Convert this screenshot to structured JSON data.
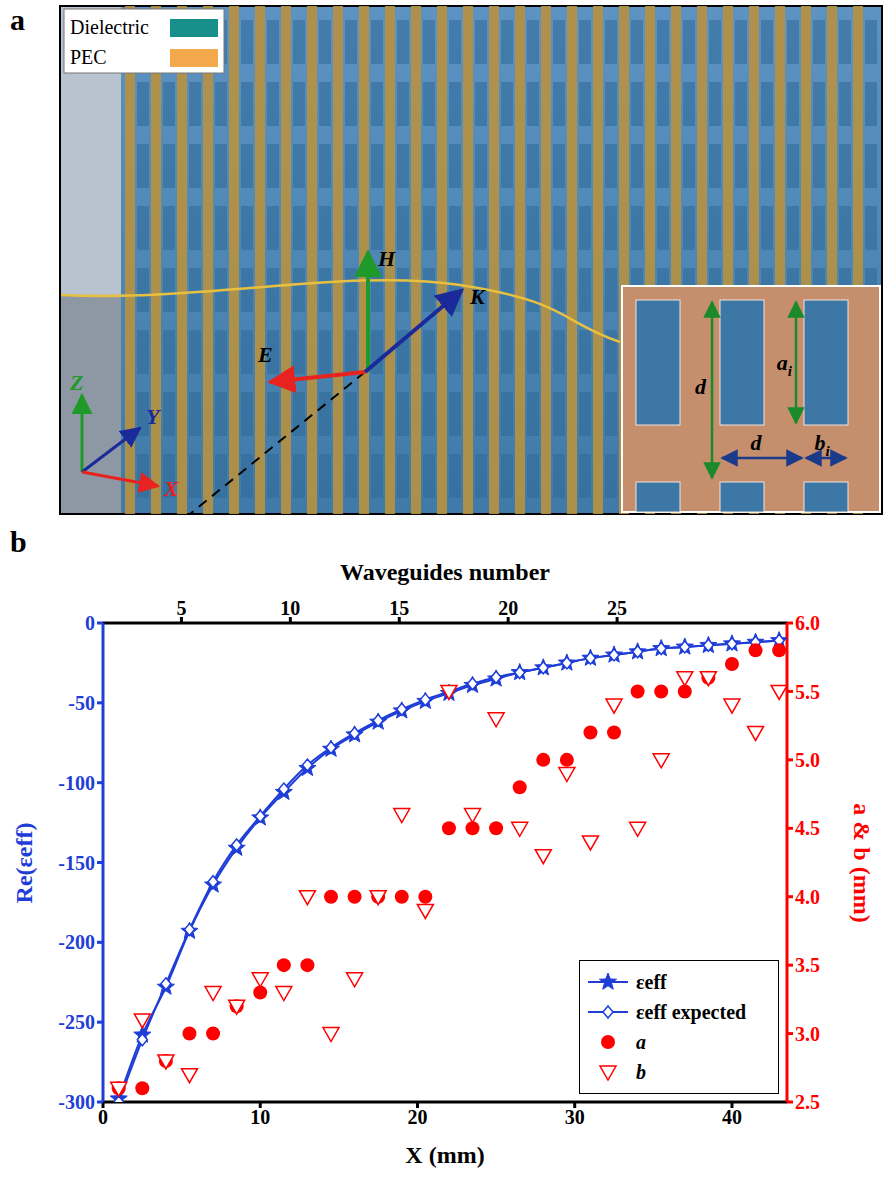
{
  "diagram": {
    "panel_label": "a",
    "legend": [
      {
        "label": "Dielectric",
        "color": "#17908c"
      },
      {
        "label": "PEC",
        "color": "#f3a84c"
      }
    ],
    "vectors": {
      "E": "E",
      "H": "H",
      "K": "K"
    },
    "axes": {
      "x": "X",
      "y": "Y",
      "z": "Z"
    },
    "inset": {
      "period": "d",
      "slot_height": "a",
      "slot_width": "b",
      "index": "i"
    }
  },
  "chart_data": {
    "type": "line",
    "panel_label": "b",
    "x_label": "X (mm)",
    "x2_label": "Waveguides number",
    "y_label": "Re(εeff)",
    "y2_label": "a & b (mm)",
    "x": [
      1,
      2.5,
      4,
      5.5,
      7,
      8.5,
      10,
      11.5,
      13,
      14.5,
      16,
      17.5,
      19,
      20.5,
      22,
      23.5,
      25,
      26.5,
      28,
      29.5,
      31,
      32.5,
      34,
      35.5,
      37,
      38.5,
      40,
      41.5,
      43
    ],
    "xlim": [
      0,
      43.5
    ],
    "xticks": [
      0,
      10,
      20,
      30,
      40
    ],
    "x2lim": [
      1.4,
      32.8
    ],
    "x2ticks": [
      5,
      10,
      15,
      20,
      25
    ],
    "ylim": [
      -300,
      0
    ],
    "yticks": [
      -300,
      -250,
      -200,
      -150,
      -100,
      -50,
      0
    ],
    "y2lim": [
      2.5,
      6
    ],
    "y2ticks": [
      2.5,
      {
        "value": 3,
        "label": "3.0"
      },
      3.5,
      {
        "value": 4,
        "label": "4.0"
      },
      4.5,
      {
        "value": 5,
        "label": "5.0"
      },
      5.5,
      {
        "value": 6,
        "label": "6.0"
      }
    ],
    "legend": "lower right",
    "series": [
      {
        "name": "εeff",
        "type": "line",
        "color": "#1f3ed8",
        "marker": "star",
        "values": [
          -298,
          -258,
          -228,
          -193,
          -164,
          -141,
          -122,
          -106,
          -91,
          -79,
          -70,
          -62,
          -55,
          -49,
          -44,
          -39,
          -35,
          -31,
          -28,
          -25,
          -22,
          -20,
          -18,
          -16,
          -15,
          -14,
          -13,
          -12,
          -11
        ]
      },
      {
        "name": "εeff expected",
        "type": "line",
        "color": "#1f3ed8",
        "marker": "open_diamond",
        "values": [
          -300,
          -261,
          -226,
          -192,
          -162,
          -139,
          -121,
          -104,
          -89,
          -78,
          -69,
          -61,
          -54,
          -48,
          -43,
          -38,
          -34,
          -31,
          -28,
          -25,
          -22,
          -20,
          -18,
          -16,
          -15,
          -14,
          -13,
          -12,
          -11
        ]
      },
      {
        "name": "a",
        "type": "scatter",
        "axis": "y2",
        "color": "#ff0000",
        "marker": "circle",
        "values": [
          2.6,
          2.6,
          2.8,
          3.0,
          3.0,
          3.2,
          3.3,
          3.5,
          3.5,
          4.0,
          4.0,
          4.0,
          4.0,
          4.0,
          4.5,
          4.5,
          4.5,
          4.8,
          5.0,
          5.0,
          5.2,
          5.2,
          5.5,
          5.5,
          5.5,
          5.6,
          5.7,
          5.8,
          5.8
        ]
      },
      {
        "name": "b",
        "type": "scatter",
        "axis": "y2",
        "color": "#ff0000",
        "marker": "open_triangle",
        "values": [
          2.6,
          3.1,
          2.8,
          2.7,
          3.3,
          3.2,
          3.4,
          3.3,
          4.0,
          3.0,
          3.4,
          4.0,
          4.6,
          3.9,
          5.5,
          4.6,
          5.3,
          4.5,
          4.3,
          4.9,
          4.4,
          5.4,
          4.5,
          5.0,
          5.6,
          5.6,
          5.4,
          5.2,
          5.5
        ]
      }
    ]
  }
}
